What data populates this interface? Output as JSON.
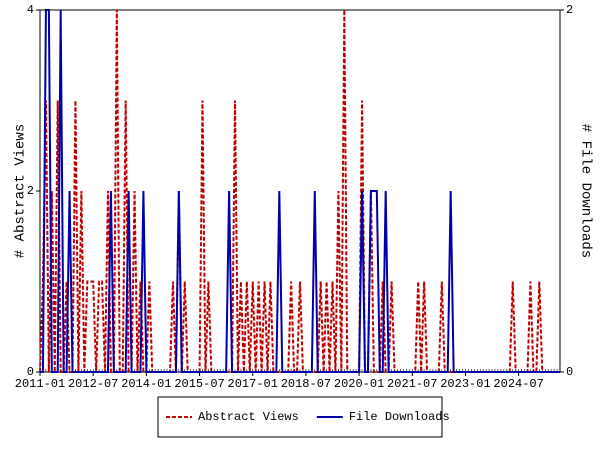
{
  "chart_data": {
    "type": "line",
    "x": [
      "2011-01",
      "2011-02",
      "2011-03",
      "2011-04",
      "2011-05",
      "2011-06",
      "2011-07",
      "2011-08",
      "2011-09",
      "2011-10",
      "2011-11",
      "2011-12",
      "2012-01",
      "2012-02",
      "2012-03",
      "2012-04",
      "2012-05",
      "2012-06",
      "2012-07",
      "2012-08",
      "2012-09",
      "2012-10",
      "2012-11",
      "2012-12",
      "2013-01",
      "2013-02",
      "2013-03",
      "2013-04",
      "2013-05",
      "2013-06",
      "2013-07",
      "2013-08",
      "2013-09",
      "2013-10",
      "2013-11",
      "2013-12",
      "2014-01",
      "2014-02",
      "2014-03",
      "2014-04",
      "2014-05",
      "2014-06",
      "2014-07",
      "2014-08",
      "2014-09",
      "2014-10",
      "2014-11",
      "2014-12",
      "2015-01",
      "2015-02",
      "2015-03",
      "2015-04",
      "2015-05",
      "2015-06",
      "2015-07",
      "2015-08",
      "2015-09",
      "2015-10",
      "2015-11",
      "2015-12",
      "2016-01",
      "2016-02",
      "2016-03",
      "2016-04",
      "2016-05",
      "2016-06",
      "2016-07",
      "2016-08",
      "2016-09",
      "2016-10",
      "2016-11",
      "2016-12",
      "2017-01",
      "2017-02",
      "2017-03",
      "2017-04",
      "2017-05",
      "2017-06",
      "2017-07",
      "2017-08",
      "2017-09",
      "2017-10",
      "2017-11",
      "2017-12",
      "2018-01",
      "2018-02",
      "2018-03",
      "2018-04",
      "2018-05",
      "2018-06",
      "2018-07",
      "2018-08",
      "2018-09",
      "2018-10",
      "2018-11",
      "2018-12",
      "2019-01",
      "2019-02",
      "2019-03",
      "2019-04",
      "2019-05",
      "2019-06",
      "2019-07",
      "2019-08",
      "2019-09",
      "2019-10",
      "2019-11",
      "2019-12",
      "2020-01",
      "2020-02",
      "2020-03",
      "2020-04",
      "2020-05",
      "2020-06",
      "2020-07",
      "2020-08",
      "2020-09",
      "2020-10",
      "2020-11",
      "2020-12",
      "2021-01",
      "2021-02",
      "2021-03",
      "2021-04",
      "2021-05",
      "2021-06",
      "2021-07",
      "2021-08",
      "2021-09",
      "2021-10",
      "2021-11",
      "2021-12",
      "2022-01",
      "2022-02",
      "2022-03",
      "2022-04",
      "2022-05",
      "2022-06",
      "2022-07",
      "2022-08",
      "2022-09",
      "2022-10",
      "2022-11",
      "2022-12",
      "2023-01",
      "2023-02",
      "2023-03",
      "2023-04",
      "2023-05",
      "2023-06",
      "2023-07",
      "2023-08",
      "2023-09",
      "2023-10",
      "2023-11",
      "2023-12",
      "2024-01",
      "2024-02",
      "2024-03",
      "2024-04",
      "2024-05",
      "2024-06",
      "2024-07",
      "2024-08",
      "2024-09",
      "2024-10",
      "2024-11",
      "2024-12",
      "2025-01",
      "2025-02",
      "2025-03",
      "2025-04",
      "2025-05",
      "2025-06",
      "2025-07",
      "2025-08",
      "2025-09"
    ],
    "xticks": [
      "2011-01",
      "2012-07",
      "2014-01",
      "2015-07",
      "2017-01",
      "2018-07",
      "2020-01",
      "2021-07",
      "2023-01",
      "2024-07"
    ],
    "ylabel": "# Abstract Views",
    "y2label": "# File Downloads",
    "ylim": [
      0,
      4
    ],
    "yticks": [
      0,
      2,
      4
    ],
    "y2lim": [
      0,
      2
    ],
    "y2ticks": [
      0,
      2
    ],
    "legend": "bottom",
    "series": [
      {
        "name": "Abstract Views",
        "color": "#c00000",
        "dashed": true,
        "values": [
          0,
          1,
          3,
          0,
          2,
          0,
          3,
          0,
          0,
          1,
          0,
          0,
          3,
          0,
          2,
          0,
          1,
          1,
          1,
          0,
          1,
          1,
          0,
          2,
          0,
          0,
          4,
          0,
          0,
          3,
          0,
          0,
          2,
          0,
          1,
          0,
          0,
          1,
          0,
          0,
          0,
          0,
          0,
          0,
          0,
          1,
          0,
          2,
          0,
          1,
          0,
          0,
          0,
          0,
          0,
          3,
          0,
          1,
          0,
          0,
          0,
          0,
          0,
          0,
          0,
          0,
          3,
          0,
          1,
          0,
          1,
          0,
          1,
          0,
          1,
          0,
          1,
          0,
          1,
          0,
          0,
          0,
          0,
          0,
          0,
          1,
          0,
          0,
          1,
          0,
          0,
          0,
          0,
          0,
          0,
          1,
          0,
          1,
          0,
          1,
          0,
          2,
          0,
          4,
          0,
          0,
          0,
          0,
          0,
          3,
          0,
          0,
          2,
          0,
          0,
          0,
          1,
          0,
          0,
          1,
          0,
          0,
          0,
          0,
          0,
          0,
          0,
          0,
          1,
          0,
          1,
          0,
          0,
          0,
          0,
          0,
          1,
          0,
          0,
          0,
          0,
          0,
          0,
          0,
          0,
          0,
          0,
          0,
          0,
          0,
          0,
          0,
          0,
          0,
          0,
          0,
          0,
          0,
          0,
          0,
          1,
          0,
          0,
          0,
          0,
          0,
          1,
          0,
          0,
          1,
          0,
          0,
          0,
          0,
          0,
          0,
          0
        ]
      },
      {
        "name": "File Downloads",
        "color": "#0000aa",
        "dashed": false,
        "axis": "y2",
        "values": [
          0,
          0,
          2,
          2,
          0,
          0,
          0,
          2,
          0,
          0,
          1,
          0,
          0,
          0,
          0,
          0,
          0,
          0,
          0,
          0,
          0,
          0,
          0,
          0,
          1,
          0,
          0,
          0,
          0,
          0,
          1,
          0,
          0,
          0,
          0,
          1,
          0,
          0,
          0,
          0,
          0,
          0,
          0,
          0,
          0,
          0,
          0,
          1,
          0,
          0,
          0,
          0,
          0,
          0,
          0,
          0,
          0,
          0,
          0,
          0,
          0,
          0,
          0,
          0,
          1,
          0,
          0,
          0,
          0,
          0,
          0,
          0,
          0,
          0,
          0,
          0,
          0,
          0,
          0,
          0,
          0,
          1,
          0,
          0,
          0,
          0,
          0,
          0,
          0,
          0,
          0,
          0,
          0,
          1,
          0,
          0,
          0,
          0,
          0,
          0,
          0,
          0,
          0,
          0,
          0,
          0,
          0,
          0,
          0,
          1,
          0,
          0,
          1,
          1,
          1,
          0,
          0,
          1,
          0,
          0,
          0,
          0,
          0,
          0,
          0,
          0,
          0,
          0,
          0,
          0,
          0,
          0,
          0,
          0,
          0,
          0,
          0,
          0,
          0,
          1,
          0,
          0,
          0,
          0,
          0,
          0,
          0,
          0,
          0,
          0,
          0,
          0,
          0,
          0,
          0,
          0,
          0,
          0,
          0,
          0,
          0,
          0,
          0,
          0,
          0,
          0,
          0,
          0,
          0,
          0,
          0,
          0,
          0,
          0,
          0,
          0,
          0
        ]
      }
    ]
  }
}
